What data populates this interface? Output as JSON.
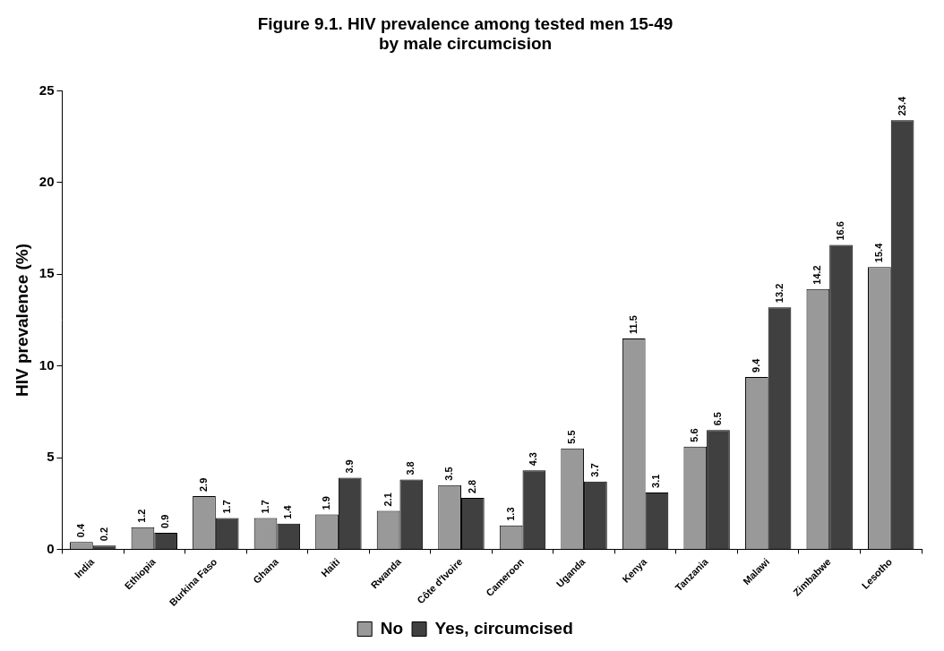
{
  "chart_data": {
    "type": "bar",
    "title": [
      "Figure 9.1. HIV prevalence among tested men 15-49",
      "by male circumcision"
    ],
    "y_label": "HIV prevalence (%)",
    "categories": [
      "India",
      "Ethiopia",
      "Burkina Faso",
      "Ghana",
      "Haiti",
      "Rwanda",
      "Côte d'Ivoire",
      "Cameroon",
      "Uganda",
      "Kenya",
      "Tanzania",
      "Malawi",
      "Zimbabwe",
      "Lesotho"
    ],
    "series": [
      {
        "name": "No",
        "color": "#999999",
        "values": [
          0.4,
          1.2,
          2.9,
          1.7,
          1.9,
          2.1,
          3.5,
          1.3,
          5.5,
          11.5,
          5.6,
          9.4,
          14.2,
          15.4
        ]
      },
      {
        "name": "Yes, circumcised",
        "color": "#404040",
        "values": [
          0.2,
          0.9,
          1.7,
          1.4,
          3.9,
          3.8,
          2.8,
          4.3,
          3.7,
          3.1,
          6.5,
          13.2,
          16.6,
          23.4
        ]
      }
    ],
    "ylim": [
      0,
      25
    ],
    "yticks": [
      0,
      5,
      10,
      15,
      20,
      25
    ],
    "grid": false,
    "legend": "bottom",
    "data_labels": true
  }
}
